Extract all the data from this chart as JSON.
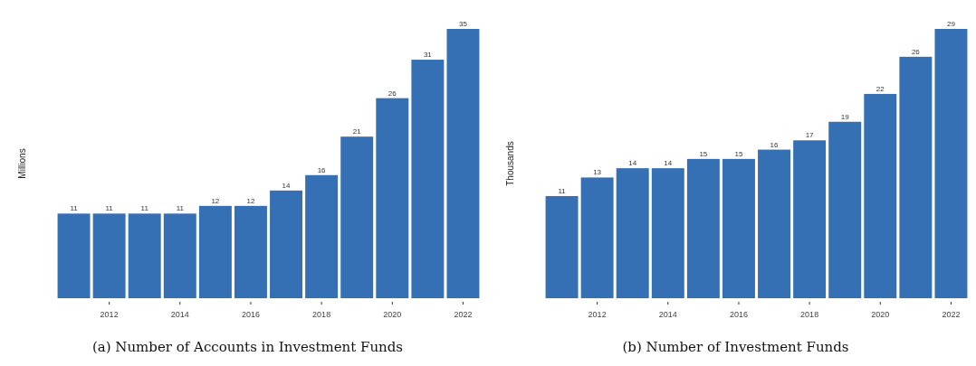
{
  "chart_data": [
    {
      "type": "bar",
      "title": "(a) Number of Accounts in Investment Funds",
      "ylabel": "Millions",
      "categories": [
        null,
        "2012",
        null,
        "2014",
        null,
        "2016",
        null,
        "2018",
        null,
        "2020",
        null,
        "2022"
      ],
      "values": [
        11,
        11,
        11,
        11,
        12,
        12,
        14,
        16,
        21,
        26,
        31,
        35
      ],
      "color": "#3570b5",
      "data_labels": true,
      "grid": false
    },
    {
      "type": "bar",
      "title": "(b) Number of Investment Funds",
      "ylabel": "Thousands",
      "categories": [
        null,
        "2012",
        null,
        "2014",
        null,
        "2016",
        null,
        "2018",
        null,
        "2020",
        null,
        "2022"
      ],
      "values": [
        11,
        13,
        14,
        14,
        15,
        15,
        16,
        17,
        19,
        22,
        26,
        29
      ],
      "color": "#3570b5",
      "data_labels": true,
      "grid": false
    }
  ]
}
